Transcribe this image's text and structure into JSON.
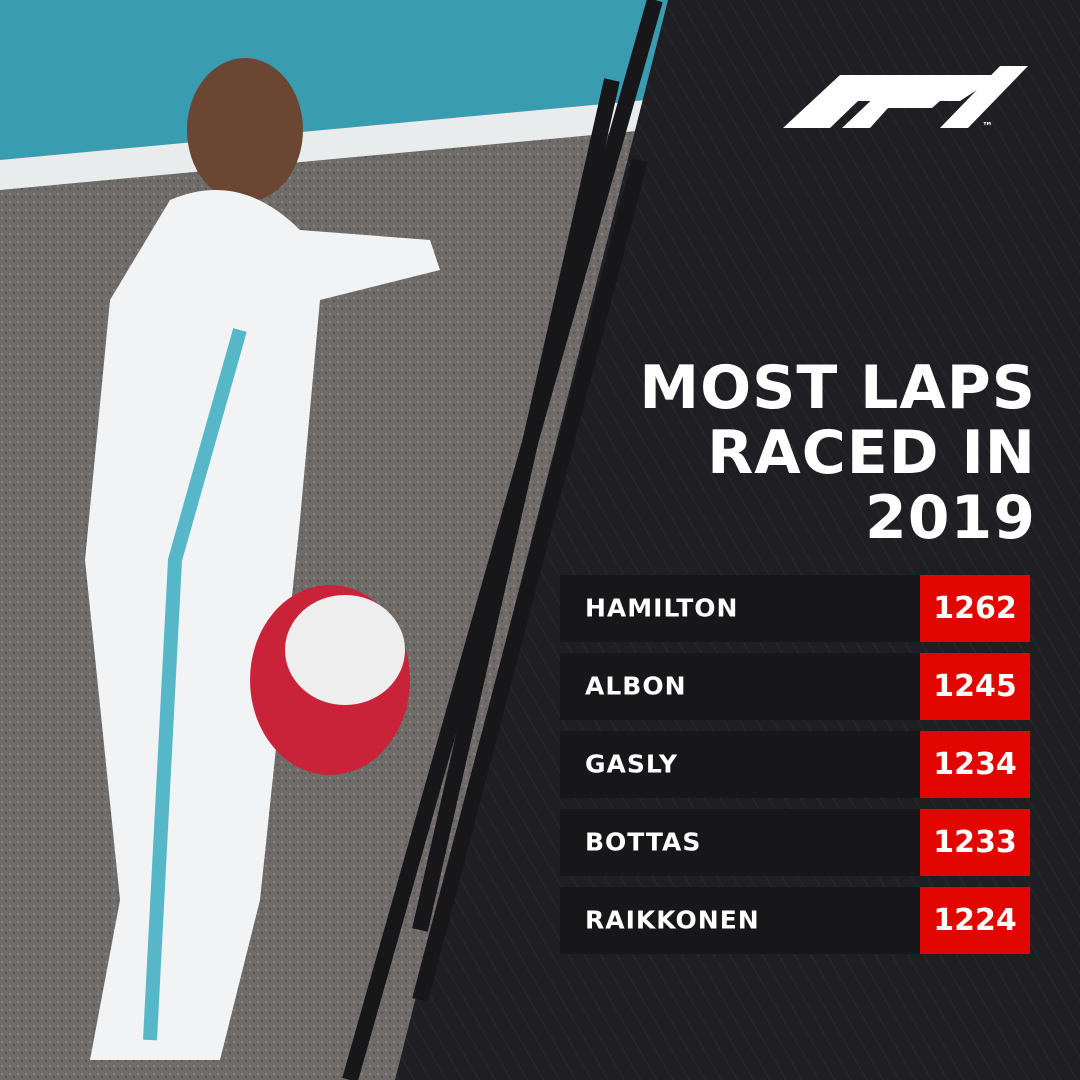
{
  "logo_mark": "™",
  "title_lines": [
    "MOST LAPS",
    "RACED IN",
    "2019"
  ],
  "table": {
    "rows": [
      [
        "HAMILTON",
        1262
      ],
      [
        "ALBON",
        1245
      ],
      [
        "GASLY",
        1234
      ],
      [
        "BOTTAS",
        1233
      ],
      [
        "RAIKKONEN",
        1224
      ]
    ]
  }
}
